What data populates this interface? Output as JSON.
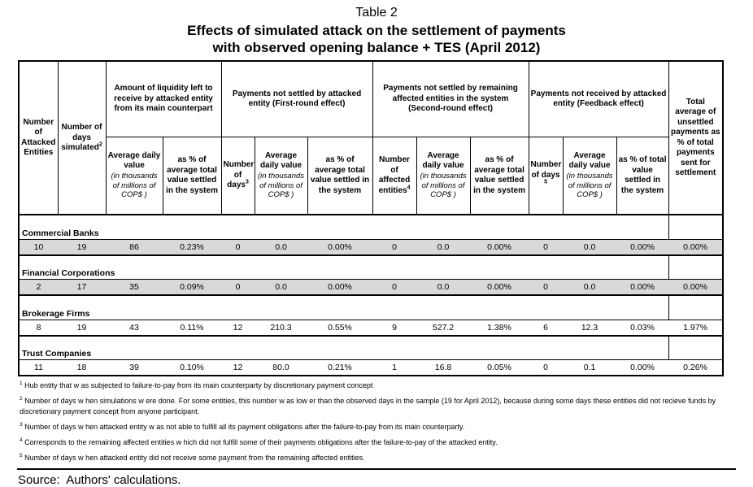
{
  "page": {
    "title": "Table 2",
    "subtitle_line1": "Effects of simulated attack on the settlement of payments",
    "subtitle_line2": "with observed opening balance + TES (April 2012)"
  },
  "table": {
    "headers": {
      "col_attacked": "Number of Attacked Entities",
      "col_days_simulated": {
        "text": "Number of days simulated",
        "sup": "2"
      },
      "grp_liquidity": "Amount of liquidity left to receive by attacked entity from its main counterpart",
      "grp_first_round": "Payments not settled by attacked entity (First-round effect)",
      "grp_second_round": "Payments not settled by remaining affected entities in the system (Second-round effect)",
      "grp_feedback": "Payments not received by attacked entity (Feedback effect)",
      "col_total": "Total average of unsettled payments as % of total payments sent for settlement",
      "sub_avg_daily": {
        "main": "Average daily value",
        "italic": "(in thousands of millions of COP$ )"
      },
      "sub_pct_avg": "as % of average total value settled in the system",
      "sub_days_first": {
        "text": "Number of days",
        "sup": "3"
      },
      "sub_affected": {
        "text": "Number of affected entities",
        "sup": "4"
      },
      "sub_days_feedback": {
        "text": "Number of days",
        "sup": "5"
      },
      "sub_pct_total": "as % of total value settled in the system"
    },
    "shade_color": "#d9d9d9",
    "groups": [
      {
        "label": "Commercial Banks",
        "shaded": true,
        "values": [
          "10",
          "19",
          "86",
          "0.23%",
          "0",
          "0.0",
          "0.00%",
          "0",
          "0.0",
          "0.00%",
          "0",
          "0.0",
          "0.00%",
          "0.00%"
        ]
      },
      {
        "label": "Financial Corporations",
        "shaded": true,
        "values": [
          "2",
          "17",
          "35",
          "0.09%",
          "0",
          "0.0",
          "0.00%",
          "0",
          "0.0",
          "0.00%",
          "0",
          "0.0",
          "0.00%",
          "0.00%"
        ]
      },
      {
        "label": "Brokerage Firms",
        "shaded": false,
        "values": [
          "8",
          "19",
          "43",
          "0.11%",
          "12",
          "210.3",
          "0.55%",
          "9",
          "527.2",
          "1.38%",
          "6",
          "12.3",
          "0.03%",
          "1.97%"
        ]
      },
      {
        "label": "Trust Companies",
        "shaded": false,
        "values": [
          "11",
          "18",
          "39",
          "0.10%",
          "12",
          "80.0",
          "0.21%",
          "1",
          "16.8",
          "0.05%",
          "0",
          "0.1",
          "0.00%",
          "0.26%"
        ]
      }
    ]
  },
  "footnotes": [
    {
      "sup": "1",
      "text": " Hub entity that w as subjected to failure-to-pay from its main counterparty by discretionary payment concept"
    },
    {
      "sup": "2",
      "text": " Number of days w hen simulations w ere done. For some entities, this number w as low er than the observed days in the sample (19 for April 2012), because during some days these entities did not recieve funds by discretionary payment concept from anyone participant."
    },
    {
      "sup": "3",
      "text": " Number of days w hen attacked entity w as not able to fulfill all its payment obligations after the failure-to-pay from its main counterparty."
    },
    {
      "sup": "4",
      "text": " Corresponds to the remaining affected entities w hich did not fulfill some of their payments obligations after the failure-to-pay of the attacked entity."
    },
    {
      "sup": "5",
      "text": " Number of days w hen attacked entity did not receive some payment from the remaining affected entities."
    }
  ],
  "source": "Source:  Authors' calculations."
}
